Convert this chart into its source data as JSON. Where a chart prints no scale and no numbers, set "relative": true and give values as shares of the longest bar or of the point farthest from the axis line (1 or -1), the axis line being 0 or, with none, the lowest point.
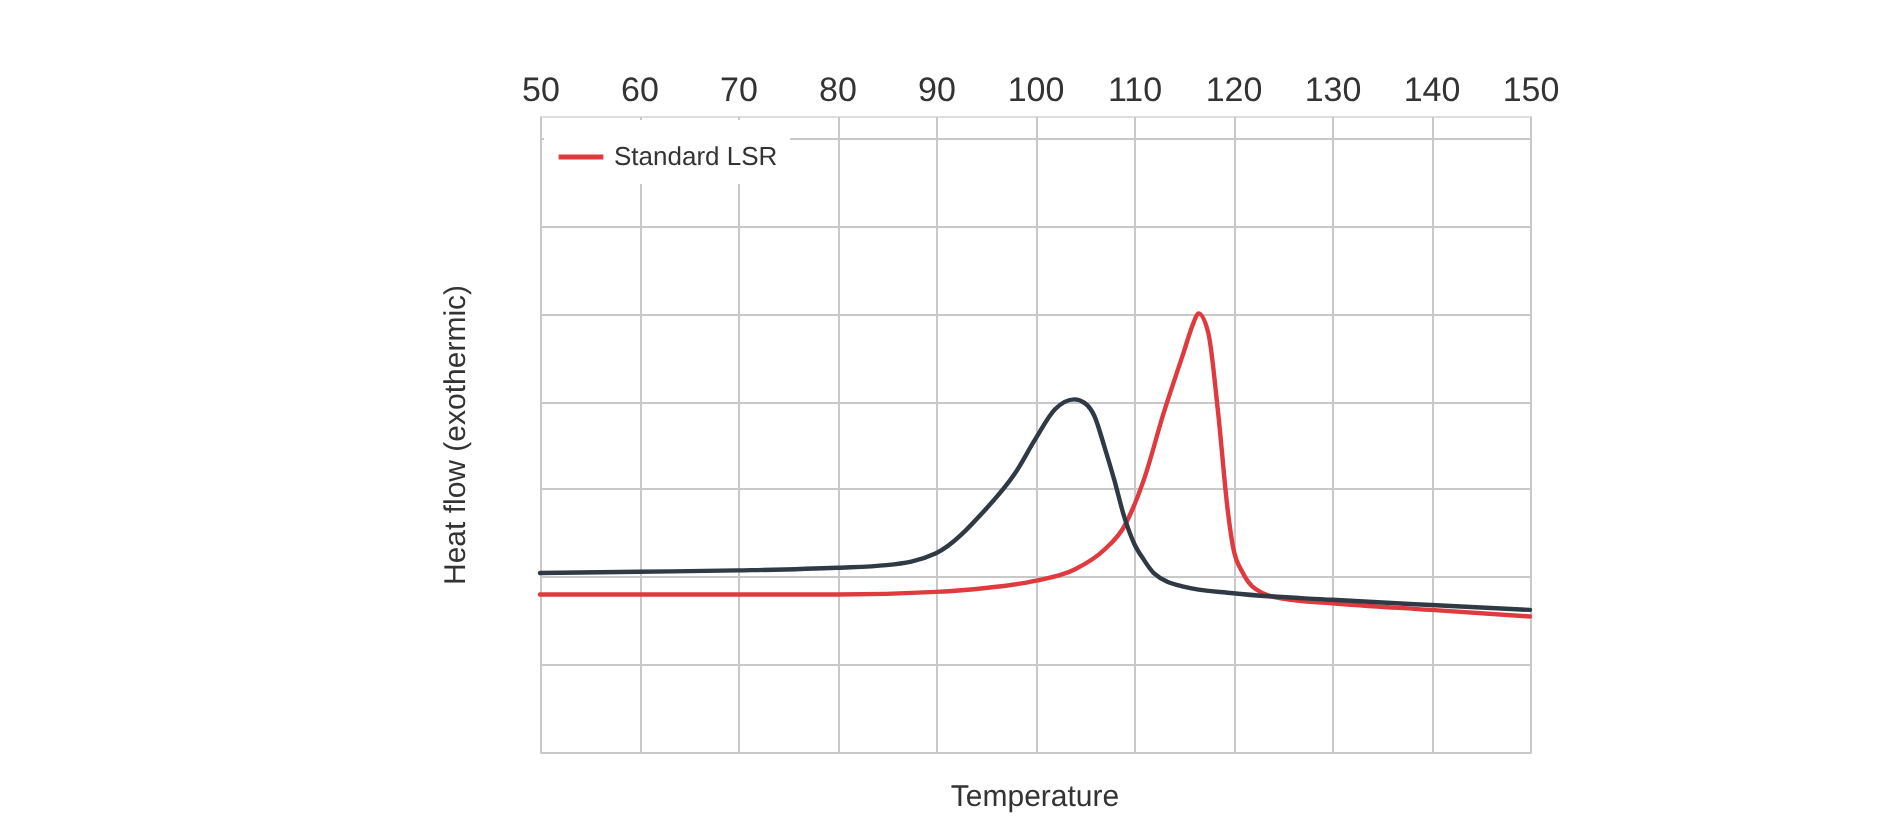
{
  "chart_data": {
    "type": "line",
    "xlabel": "Temperature",
    "ylabel": "Heat flow (exothermic)",
    "relative": true,
    "xlim": [
      50,
      150
    ],
    "xticks": [
      50,
      60,
      70,
      80,
      90,
      100,
      110,
      120,
      130,
      140,
      150
    ],
    "grid": true,
    "legend": "top left",
    "series": [
      {
        "name": "Standard LSR",
        "color": "#e03a3e",
        "x": [
          50,
          60,
          70,
          80,
          90,
          95,
          100,
          104,
          107,
          109,
          111,
          113,
          115,
          116,
          116.5,
          117.5,
          118.5,
          119.5,
          120,
          121,
          123,
          125,
          130,
          140,
          150
        ],
        "values": [
          0.359,
          0.359,
          0.359,
          0.359,
          0.365,
          0.374,
          0.39,
          0.416,
          0.461,
          0.514,
          0.621,
          0.773,
          0.91,
          0.978,
          1.0,
          0.956,
          0.773,
          0.545,
          0.468,
          0.408,
          0.362,
          0.35,
          0.339,
          0.324,
          0.309
        ]
      },
      {
        "color": "#2f3a45",
        "x": [
          50,
          60,
          70,
          80,
          85,
          90,
          95,
          98,
          100,
          102,
          104,
          105,
          106,
          107,
          108,
          109,
          110,
          111,
          112,
          115,
          120,
          130,
          140,
          150
        ],
        "values": [
          0.408,
          0.411,
          0.414,
          0.42,
          0.426,
          0.453,
          0.553,
          0.636,
          0.712,
          0.781,
          0.804,
          0.796,
          0.766,
          0.697,
          0.621,
          0.537,
          0.476,
          0.438,
          0.408,
          0.377,
          0.362,
          0.347,
          0.335,
          0.324
        ]
      }
    ]
  }
}
